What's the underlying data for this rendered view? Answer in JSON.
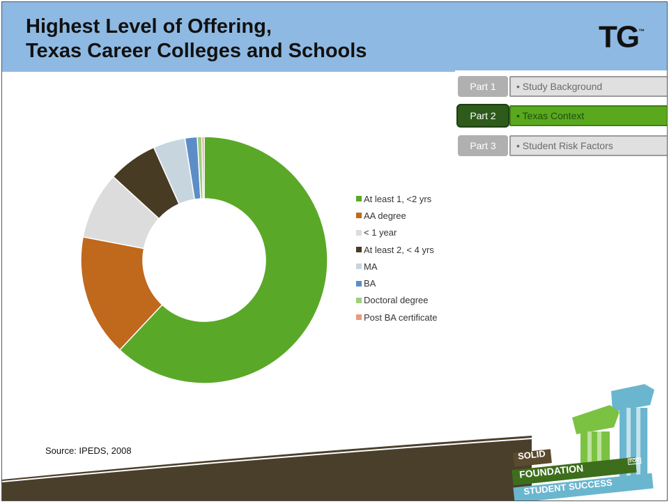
{
  "title": {
    "line1": "Highest Level of Offering,",
    "line2": "Texas Career Colleges and Schools"
  },
  "logo": {
    "text": "TG",
    "mark": "™"
  },
  "nav": [
    {
      "part": "Part 1",
      "label": "• Study Background",
      "active": false
    },
    {
      "part": "Part 2",
      "label": "• Texas Context",
      "active": true
    },
    {
      "part": "Part 3",
      "label": "• Student Risk Factors",
      "active": false
    }
  ],
  "colors": {
    "header": "#8eb9e2",
    "active_nav": "#5aa81e",
    "active_part": "#2e5a1c",
    "band": "#4a3f2b"
  },
  "chart_data": {
    "type": "pie",
    "style": "donut",
    "legend_position": "right",
    "series": [
      {
        "name": "At least 1, <2  yrs",
        "value": 62.0,
        "color": "#5aa828"
      },
      {
        "name": "AA degree",
        "value": 16.0,
        "color": "#c0681c"
      },
      {
        "name": "< 1  year",
        "value": 8.8,
        "color": "#dcdcdc"
      },
      {
        "name": "At least 2, < 4 yrs",
        "value": 6.5,
        "color": "#473b24"
      },
      {
        "name": "MA",
        "value": 4.2,
        "color": "#c7d6de"
      },
      {
        "name": "BA",
        "value": 1.6,
        "color": "#5d8dc7"
      },
      {
        "name": "Doctoral degree",
        "value": 0.6,
        "color": "#9ccf7e"
      },
      {
        "name": "Post  BA certificate",
        "value": 0.3,
        "color": "#e89a80"
      }
    ]
  },
  "source": "Source: IPEDS, 2008",
  "footer_logo": {
    "line1": "SOLID",
    "line2": "FOUNDATION",
    "line2_tag": "FOR",
    "line3": "STUDENT SUCCESS"
  }
}
